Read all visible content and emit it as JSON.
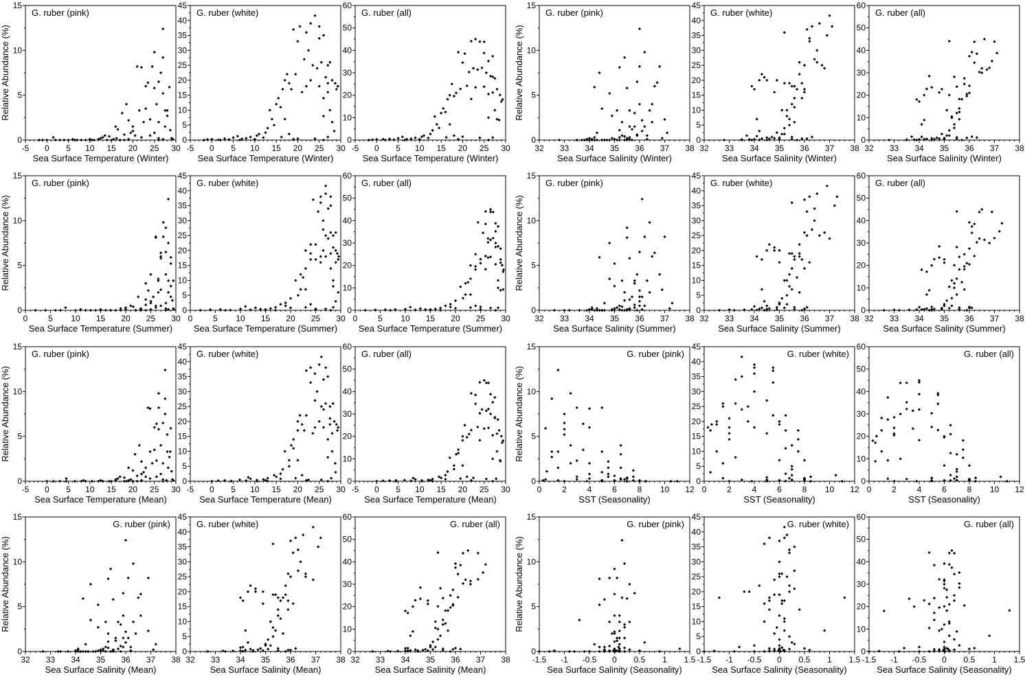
{
  "figure": {
    "ylabel": "Relative Abundance (%)",
    "species_labels": {
      "pink": "G. ruber (pink)",
      "white": "G. ruber (white)",
      "all": "G. ruber (all)"
    },
    "point_color": "#000000"
  },
  "chart_data": {
    "type": "scatter",
    "grid": false,
    "yaxes": {
      "pink": {
        "ylim": [
          0,
          15
        ],
        "step": 5
      },
      "white": {
        "ylim": [
          0,
          45
        ],
        "step": 5
      },
      "all": {
        "ylim": [
          0,
          60
        ],
        "step": 10
      }
    },
    "variables": [
      "sst_winter",
      "sst_summer",
      "sst_mean",
      "sst_seasonality",
      "sss_winter",
      "sss_summer",
      "sss_mean",
      "sss_seasonality",
      "pink",
      "white"
    ],
    "samples": [
      [
        -1.8,
        2,
        0,
        3.8,
        33.5,
        33.2,
        33.4,
        -0.3,
        0,
        0
      ],
      [
        -1,
        4,
        1.5,
        5,
        33.8,
        33.6,
        33.7,
        -0.2,
        0,
        0.2
      ],
      [
        0,
        6,
        3,
        6,
        34.0,
        33.9,
        34,
        -0.1,
        0,
        0.3
      ],
      [
        1.5,
        8,
        4.5,
        6.5,
        34.2,
        34.1,
        34.1,
        0.1,
        0.3,
        0.1
      ],
      [
        2,
        7,
        4.5,
        5,
        32.8,
        32.6,
        32.7,
        -0.9,
        0,
        0
      ],
      [
        3,
        10,
        6.5,
        7,
        34.3,
        34.2,
        34.2,
        0,
        0,
        0.5
      ],
      [
        4,
        12,
        8,
        8,
        33.5,
        33,
        33.3,
        -1.3,
        0,
        0.2
      ],
      [
        5,
        13,
        9,
        8,
        34.5,
        34.3,
        34.4,
        0.2,
        0,
        0.8
      ],
      [
        6,
        11,
        8.5,
        5,
        34.1,
        34,
        34,
        0.05,
        0.1,
        1.3
      ],
      [
        6.5,
        15,
        10.5,
        8.5,
        33.9,
        34.4,
        34.1,
        -0.5,
        0,
        0
      ],
      [
        7,
        14,
        10.5,
        7,
        34.6,
        34.5,
        34.5,
        0.1,
        0,
        0.4
      ],
      [
        8,
        16,
        12,
        8,
        34.8,
        34.6,
        34.7,
        0,
        0,
        0.6
      ],
      [
        9,
        17,
        13,
        8,
        34.7,
        34.9,
        34.8,
        -0.2,
        0,
        1.0
      ],
      [
        10,
        15,
        12.5,
        5,
        35.0,
        34.9,
        34.9,
        0.1,
        0.1,
        0.3
      ],
      [
        10.5,
        19,
        15,
        8.5,
        33.7,
        34.5,
        34.1,
        -0.8,
        0,
        1.5
      ],
      [
        11,
        18,
        14.5,
        7,
        35.1,
        35.0,
        35.0,
        0,
        0,
        2.0
      ],
      [
        12,
        20,
        16,
        8,
        35.0,
        35.2,
        35.1,
        -0.1,
        0.1,
        0.8
      ],
      [
        12.5,
        19,
        16,
        6.5,
        34.9,
        35.0,
        35.0,
        0.3,
        0.2,
        2.5
      ],
      [
        13,
        20,
        16.5,
        7,
        35.2,
        35.1,
        35.1,
        0,
        0.3,
        4
      ],
      [
        13.5,
        21,
        17,
        7.5,
        35.3,
        35.2,
        35.2,
        -0.3,
        0.5,
        10
      ],
      [
        14,
        22,
        18,
        8,
        34.1,
        34.3,
        34.2,
        0.1,
        0,
        7
      ],
      [
        14.5,
        21.5,
        18,
        7,
        35.4,
        35.3,
        35.3,
        0.2,
        0.4,
        5
      ],
      [
        15,
        22,
        18.5,
        7,
        35.5,
        35.4,
        35.5,
        0,
        0,
        12
      ],
      [
        15.5,
        23,
        19,
        7.5,
        35.6,
        35.5,
        35.5,
        -0.2,
        0.1,
        14
      ],
      [
        16,
        22.5,
        19,
        6.5,
        35.6,
        35.7,
        35.6,
        0.1,
        1.5,
        11
      ],
      [
        16.2,
        23,
        19.5,
        6.8,
        35.5,
        35.6,
        35.5,
        0,
        0.2,
        1
      ],
      [
        16.5,
        24,
        20,
        7.5,
        35.7,
        35.6,
        35.6,
        0.05,
        1.2,
        17
      ],
      [
        17,
        23,
        20,
        6,
        34.2,
        34.5,
        34.3,
        -0.6,
        0,
        20
      ],
      [
        17.5,
        24,
        20.5,
        6.5,
        35.8,
        35.8,
        35.8,
        0.2,
        3,
        22
      ],
      [
        18,
        24,
        21,
        6,
        35.9,
        35.8,
        35.8,
        -0.1,
        0.6,
        19
      ],
      [
        18.5,
        25,
        21.5,
        6.5,
        36.0,
        35.9,
        35.9,
        0.1,
        4,
        17
      ],
      [
        19,
        24.5,
        22,
        5.5,
        36.1,
        36.0,
        36.0,
        0,
        2.2,
        37
      ],
      [
        19.5,
        25,
        22,
        5.5,
        34.3,
        34.6,
        34.4,
        -0.4,
        0.8,
        22
      ],
      [
        20,
        25.5,
        23,
        5.5,
        36.2,
        36.1,
        36.1,
        0.2,
        1.5,
        33
      ],
      [
        20.5,
        26,
        23,
        5.5,
        36.3,
        36.2,
        36.2,
        -0.2,
        0.5,
        38
      ],
      [
        21,
        26,
        23.5,
        5,
        36.0,
        36.2,
        36.1,
        0.05,
        8.2,
        16
      ],
      [
        21.5,
        26.5,
        24,
        5,
        36.4,
        36.3,
        36.3,
        0.3,
        3.3,
        27
      ],
      [
        22,
        26,
        24,
        4,
        35.2,
        35.5,
        35.3,
        -0.3,
        8.1,
        36
      ],
      [
        22.5,
        26.5,
        24.5,
        4,
        36.5,
        36.4,
        36.4,
        0,
        2,
        30
      ],
      [
        23,
        27,
        25,
        4,
        36.6,
        36.5,
        36.5,
        0.15,
        6,
        39
      ],
      [
        23,
        26.5,
        25,
        3.5,
        34.5,
        34.8,
        34.6,
        -0.7,
        3.5,
        20
      ],
      [
        23.5,
        27,
        25.5,
        3.5,
        36.7,
        36.6,
        36.6,
        0,
        6.4,
        25
      ],
      [
        24,
        27,
        25.5,
        3,
        37.0,
        36.9,
        36.9,
        0.1,
        2.3,
        41.6
      ],
      [
        24.5,
        27.5,
        26,
        3,
        36.8,
        37.0,
        36.9,
        -0.1,
        8.2,
        24
      ],
      [
        25,
        27.5,
        26,
        2.5,
        36.2,
        36.4,
        36.3,
        0.2,
        9.8,
        34
      ],
      [
        25,
        27,
        26,
        2,
        35.5,
        35.6,
        35.5,
        -0.2,
        5.8,
        18
      ],
      [
        25.5,
        28,
        26.5,
        2.5,
        36.5,
        36.8,
        36.6,
        0,
        4,
        26
      ],
      [
        26,
        28,
        27,
        2,
        35.9,
        36.0,
        35.9,
        0.4,
        6.5,
        14
      ],
      [
        26,
        28.5,
        27,
        2.5,
        35.3,
        35.4,
        35.3,
        -0.05,
        2,
        8
      ],
      [
        26.5,
        28.5,
        27.5,
        2,
        34.4,
        34.8,
        34.6,
        0.3,
        7.5,
        21
      ],
      [
        27,
        28.5,
        27.5,
        1.5,
        36.0,
        36.1,
        36.0,
        0.15,
        12.4,
        25
      ],
      [
        27,
        28,
        27.5,
        1,
        35.4,
        35.5,
        35.4,
        0,
        9.2,
        19
      ],
      [
        27,
        29,
        28,
        2,
        34.8,
        35.0,
        34.9,
        -0.3,
        5.2,
        16
      ],
      [
        27.5,
        28.5,
        28,
        1,
        35.1,
        35.3,
        35.2,
        0.1,
        3.3,
        10
      ],
      [
        27.5,
        29,
        28.2,
        1.5,
        35.8,
        36.0,
        35.9,
        0.05,
        1.5,
        26
      ],
      [
        28,
        29,
        28.5,
        1,
        34.9,
        35.0,
        34.9,
        0.2,
        2.7,
        20
      ],
      [
        28,
        29.5,
        28.7,
        1.5,
        35.6,
        35.8,
        35.7,
        -0.1,
        3.3,
        6
      ],
      [
        28.5,
        29,
        28.8,
        0.5,
        34.2,
        34.4,
        34.3,
        0.25,
        5.9,
        3
      ],
      [
        28.7,
        29.3,
        29,
        0.6,
        35.2,
        35.4,
        35.3,
        0,
        1.1,
        19
      ],
      [
        29,
        29.5,
        29.2,
        0.5,
        34.0,
        34.3,
        34.1,
        -0.2,
        0.2,
        17
      ],
      [
        27,
        28.5,
        27.8,
        1.5,
        36.3,
        36.1,
        36.2,
        0.5,
        0.1,
        1
      ],
      [
        26,
        28,
        27,
        2,
        35.7,
        35.9,
        35.8,
        0.02,
        0,
        0
      ],
      [
        29.3,
        29.6,
        29.4,
        0.3,
        33.9,
        34.1,
        34.0,
        -1.2,
        0.1,
        18
      ],
      [
        24,
        27,
        25.5,
        3,
        35.9,
        36.0,
        35.9,
        0.08,
        0.5,
        0.5
      ],
      [
        19,
        25,
        22,
        6,
        35.5,
        35.6,
        35.5,
        -0.02,
        0.1,
        0.3
      ],
      [
        22,
        26,
        24,
        4,
        35.6,
        35.8,
        35.7,
        1.3,
        0.3,
        18
      ],
      [
        20,
        25,
        22.5,
        5,
        36.1,
        36.0,
        36.0,
        0.6,
        1,
        0.5
      ],
      [
        17,
        23,
        20,
        6,
        35.4,
        35.5,
        35.4,
        0.9,
        0,
        7
      ],
      [
        18,
        24,
        21,
        10.5,
        35.2,
        35.3,
        35.2,
        -0.5,
        0,
        2
      ],
      [
        10,
        17,
        13,
        11,
        34.5,
        34.5,
        34.5,
        -1.5,
        0,
        0
      ],
      [
        26,
        28,
        27,
        3,
        36.9,
        37.2,
        37.1,
        0.3,
        0.2,
        35
      ],
      [
        25,
        28,
        26.5,
        4,
        37.1,
        37.3,
        37.2,
        0.1,
        0.8,
        38
      ]
    ],
    "panel_groups": [
      {
        "xvar": "sst_winter",
        "xlabel": "Sea Surface Temperature (Winter)",
        "xlim": [
          -5,
          30
        ],
        "xstep": 5,
        "label_pos": [
          "left",
          "left",
          "left"
        ]
      },
      {
        "xvar": "sss_winter",
        "xlabel": "Sea Surface Salinity (Winter)",
        "xlim": [
          32,
          38
        ],
        "xstep": 1,
        "label_pos": [
          "left",
          "left",
          "left"
        ]
      },
      {
        "xvar": "sst_summer",
        "xlabel": "Sea Surface Temperature (Summer)",
        "xlim": [
          0,
          30
        ],
        "xstep": 5,
        "label_pos": [
          "left",
          "left",
          "left"
        ]
      },
      {
        "xvar": "sss_summer",
        "xlabel": "Sea Surface Salinity (Summer)",
        "xlim": [
          32,
          38
        ],
        "xstep": 1,
        "label_pos": [
          "left",
          "left",
          "left"
        ]
      },
      {
        "xvar": "sst_mean",
        "xlabel": "Sea Surface Temperature (Mean)",
        "xlim": [
          -5,
          30
        ],
        "xstep": 5,
        "label_pos": [
          "left",
          "left",
          "left"
        ]
      },
      {
        "xvar": "sst_seasonality",
        "xlabel": "SST (Seasonality)",
        "xlim": [
          0,
          12
        ],
        "xstep": 2,
        "label_pos": [
          "right",
          "right",
          "right"
        ]
      },
      {
        "xvar": "sss_mean",
        "xlabel": "Sea Surface Salinity (Mean)",
        "xlim": [
          32,
          38
        ],
        "xstep": 1,
        "label_pos": [
          "right",
          "left",
          "right"
        ]
      },
      {
        "xvar": "sss_seasonality",
        "xlabel": "Sea Surface Salinity (Seasonality)",
        "xlim": [
          -1.5,
          1.5
        ],
        "xstep": 0.5,
        "label_pos": [
          "right",
          "right",
          "right"
        ]
      }
    ]
  }
}
